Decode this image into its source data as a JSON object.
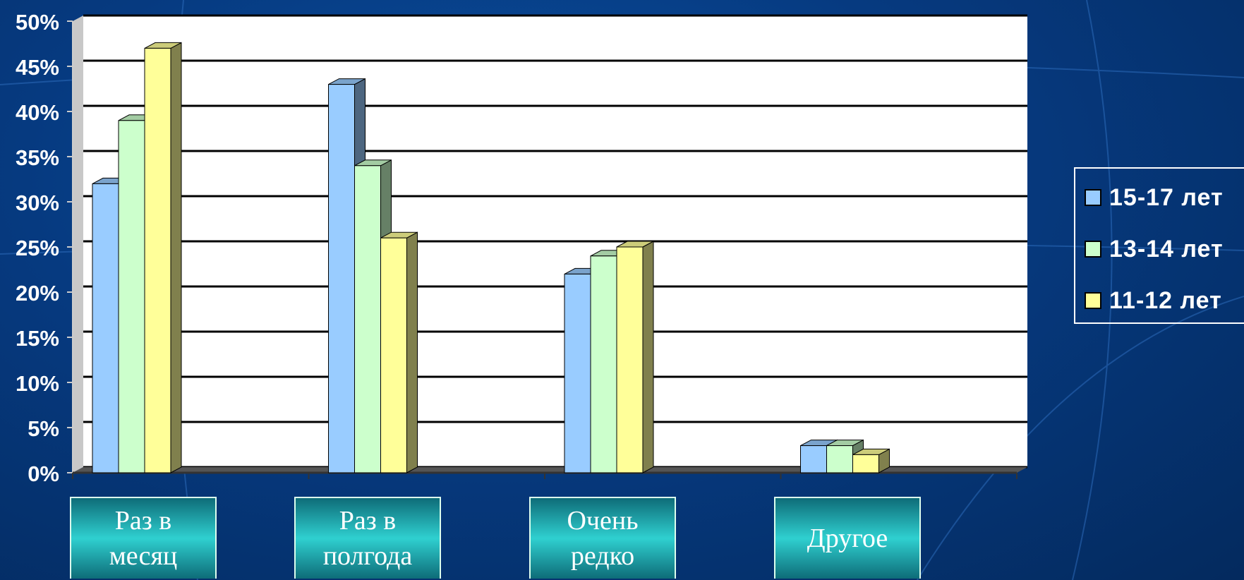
{
  "chart_data": {
    "type": "bar",
    "categories": [
      "Раз в месяц",
      "Раз в полгода",
      "Очень редко",
      "Другое"
    ],
    "series": [
      {
        "name": "15-17 лет",
        "color": "#99ccff",
        "values": [
          32,
          43,
          22,
          3
        ]
      },
      {
        "name": "13-14 лет",
        "color": "#ccffcc",
        "values": [
          39,
          34,
          24,
          3
        ]
      },
      {
        "name": "11-12 лет",
        "color": "#ffff99",
        "values": [
          47,
          26,
          25,
          2
        ]
      }
    ],
    "ylim": [
      0,
      50
    ],
    "yticks": [
      {
        "value": 0,
        "label": "0%"
      },
      {
        "value": 5,
        "label": "5%"
      },
      {
        "value": 10,
        "label": "10%"
      },
      {
        "value": 15,
        "label": "15%"
      },
      {
        "value": 20,
        "label": "20%"
      },
      {
        "value": 25,
        "label": "25%"
      },
      {
        "value": 30,
        "label": "30%"
      },
      {
        "value": 35,
        "label": "35%"
      },
      {
        "value": 40,
        "label": "40%"
      },
      {
        "value": 45,
        "label": "45%"
      },
      {
        "value": 50,
        "label": "50%"
      }
    ],
    "grid": true,
    "legend": "right"
  }
}
